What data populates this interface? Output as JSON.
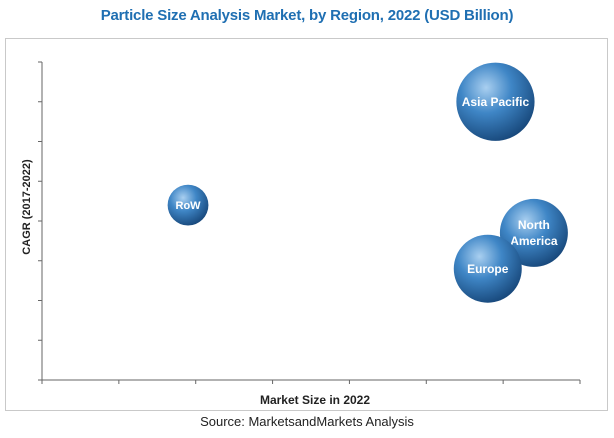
{
  "chart_data": {
    "type": "scatter",
    "title": "Particle Size Analysis Market, by Region, 2022 (USD Billion)",
    "xlabel": "Market Size in 2022",
    "ylabel": "CAGR (2017-2022)",
    "grid": false,
    "series": [
      {
        "name": "RoW",
        "x": 1.9,
        "y": 4.4,
        "size": 0.6
      },
      {
        "name": "Asia Pacific",
        "x": 5.9,
        "y": 7.0,
        "size": 1.15
      },
      {
        "name": "North America",
        "x": 6.4,
        "y": 3.7,
        "size": 1.0
      },
      {
        "name": "Europe",
        "x": 5.8,
        "y": 2.8,
        "size": 1.0
      }
    ],
    "xlim": [
      0,
      7
    ],
    "ylim": [
      0,
      8
    ]
  },
  "colors": {
    "title": "#1f6fb2",
    "bubble_light": "#a9cff0",
    "bubble_mid": "#3f86c6",
    "bubble_dark": "#17477a"
  },
  "source": "Source: MarketsandMarkets Analysis"
}
